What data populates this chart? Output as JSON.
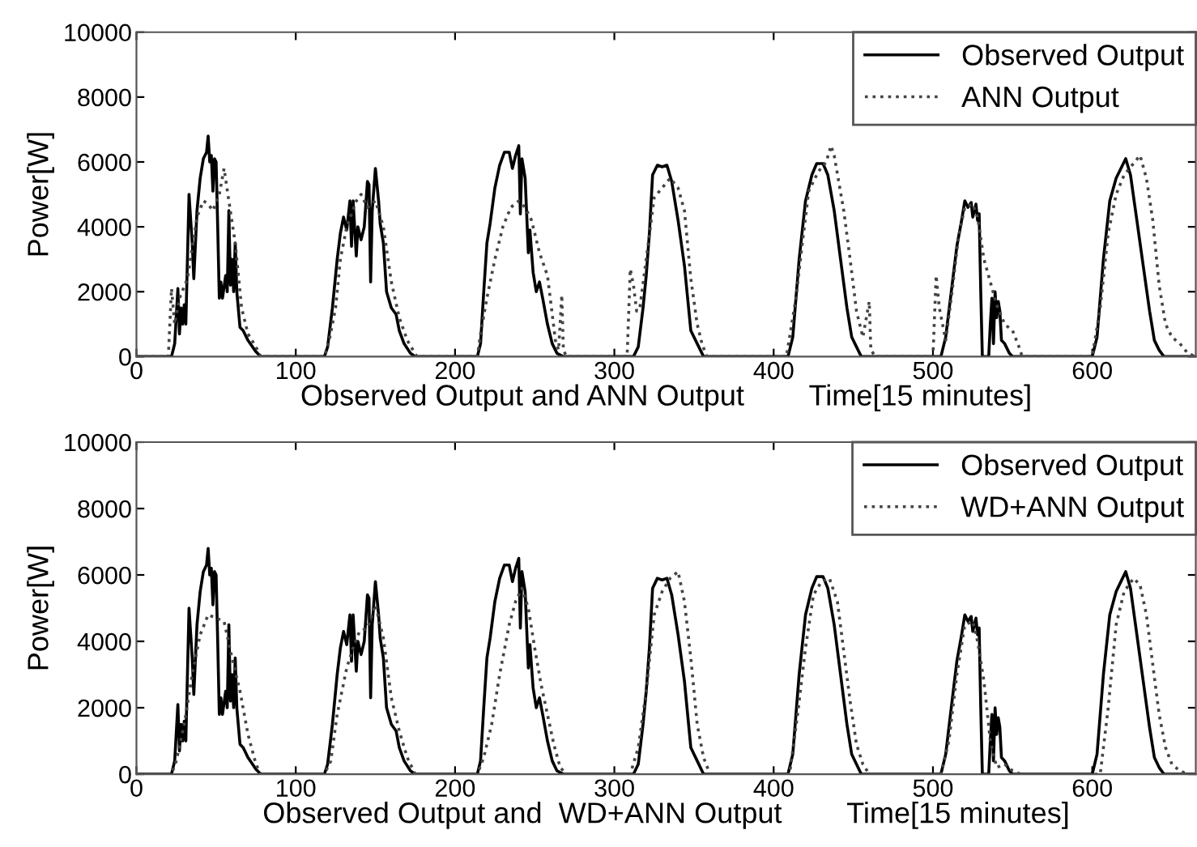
{
  "chart_data": [
    {
      "type": "line",
      "xlabel": "Observed Output and ANN Output        Time[15 minutes]",
      "ylabel": "Power[W]",
      "xlim": [
        0,
        665
      ],
      "xticks": [
        0,
        100,
        200,
        300,
        400,
        500,
        600
      ],
      "ylim": [
        0,
        10000
      ],
      "yticks": [
        0,
        2000,
        4000,
        6000,
        8000,
        10000
      ],
      "legend": "top right",
      "grid": false,
      "series": [
        {
          "name": "Observed Output",
          "color": "#000000",
          "line_style": "solid",
          "x": [
            0,
            22,
            24,
            26,
            27,
            28,
            29,
            30,
            31,
            33,
            35,
            36,
            38,
            40,
            42,
            44,
            45,
            46,
            47,
            48,
            49,
            50,
            51,
            52,
            53,
            54,
            56,
            57,
            58,
            59,
            60,
            61,
            62,
            63,
            65,
            67,
            70,
            75,
            78,
            118,
            120,
            123,
            126,
            128,
            130,
            132,
            134,
            135,
            136,
            138,
            139,
            141,
            143,
            145,
            146,
            147,
            148,
            150,
            152,
            153,
            155,
            157,
            160,
            163,
            165,
            168,
            172,
            175,
            214,
            216,
            218,
            220,
            222,
            225,
            228,
            231,
            234,
            236,
            238,
            240,
            241,
            242,
            244,
            246,
            247,
            249,
            251,
            253,
            255,
            258,
            261,
            264,
            268,
            312,
            315,
            318,
            320,
            322,
            324,
            327,
            330,
            333,
            336,
            340,
            344,
            348,
            352,
            356,
            409,
            412,
            416,
            420,
            424,
            427,
            431,
            434,
            438,
            442,
            446,
            449,
            452,
            455,
            505,
            508,
            512,
            515,
            518,
            520,
            522,
            524,
            525,
            527,
            528,
            529,
            530,
            531,
            535,
            536,
            537,
            538,
            539,
            540,
            541,
            542,
            543,
            545,
            548,
            550,
            600,
            603,
            607,
            611,
            615,
            619,
            621,
            624,
            628,
            632,
            636,
            639,
            642,
            645,
            665
          ],
          "values": [
            0,
            0,
            400,
            2100,
            700,
            1500,
            1000,
            1600,
            1000,
            5000,
            3500,
            2400,
            4500,
            5500,
            6100,
            6300,
            6800,
            6000,
            6200,
            5100,
            6100,
            6000,
            4000,
            1800,
            2300,
            1800,
            2500,
            2000,
            4500,
            2200,
            3000,
            2000,
            3500,
            2000,
            900,
            800,
            500,
            150,
            0,
            0,
            300,
            1500,
            3000,
            3800,
            4300,
            3900,
            4800,
            3400,
            4800,
            3100,
            4000,
            3600,
            4000,
            5400,
            5300,
            2300,
            4500,
            5800,
            4800,
            4100,
            3500,
            2000,
            1500,
            1300,
            800,
            400,
            100,
            0,
            0,
            400,
            2000,
            3500,
            4100,
            5200,
            5900,
            6300,
            6300,
            5800,
            6200,
            6500,
            4400,
            6100,
            5500,
            3200,
            3900,
            2600,
            2000,
            2300,
            1800,
            1000,
            400,
            100,
            0,
            0,
            300,
            1500,
            2500,
            3800,
            5600,
            5900,
            5850,
            5900,
            5400,
            4200,
            2800,
            800,
            400,
            0,
            0,
            600,
            3000,
            4800,
            5600,
            5950,
            5950,
            5600,
            4500,
            3000,
            1500,
            600,
            300,
            0,
            0,
            600,
            2200,
            3400,
            4200,
            4800,
            4600,
            4750,
            4300,
            4700,
            4200,
            4400,
            2000,
            0,
            0,
            1000,
            1800,
            400,
            2000,
            1200,
            1700,
            1400,
            500,
            400,
            100,
            0,
            0,
            600,
            3000,
            4800,
            5500,
            5900,
            6100,
            5600,
            4200,
            2800,
            1400,
            500,
            200,
            0,
            0
          ]
        },
        {
          "name": "ANN Output",
          "color": "#444444",
          "line_style": "dotted",
          "x": [
            0,
            20,
            22,
            24,
            27,
            32,
            38,
            42,
            45,
            48,
            52,
            55,
            58,
            62,
            66,
            70,
            75,
            78,
            118,
            121,
            125,
            128,
            132,
            138,
            141,
            145,
            150,
            155,
            160,
            165,
            170,
            176,
            214,
            216,
            220,
            225,
            230,
            235,
            240,
            244,
            248,
            253,
            258,
            261,
            263,
            265,
            267,
            268,
            270,
            308,
            310,
            312,
            314,
            316,
            320,
            325,
            330,
            335,
            340,
            344,
            348,
            352,
            355,
            358,
            408,
            414,
            418,
            422,
            428,
            433,
            436,
            438,
            444,
            448,
            452,
            456,
            460,
            461,
            464,
            500,
            502,
            504,
            508,
            512,
            516,
            520,
            525,
            528,
            532,
            536,
            540,
            545,
            550,
            554,
            556,
            600,
            605,
            610,
            615,
            620,
            625,
            630,
            634,
            638,
            642,
            646,
            650,
            655,
            660,
            665
          ],
          "values": [
            0,
            0,
            2100,
            1000,
            1800,
            2400,
            4300,
            4800,
            4700,
            4500,
            5000,
            5800,
            4800,
            3500,
            1500,
            700,
            300,
            0,
            0,
            500,
            1500,
            3000,
            4000,
            4800,
            5000,
            4600,
            4800,
            4000,
            2300,
            1200,
            500,
            0,
            0,
            700,
            1800,
            3000,
            4000,
            4600,
            4800,
            4600,
            4200,
            3200,
            2500,
            1300,
            500,
            200,
            1900,
            200,
            0,
            0,
            2700,
            2200,
            1400,
            1500,
            3000,
            4900,
            5200,
            5500,
            5200,
            4500,
            2400,
            1000,
            400,
            0,
            0,
            1800,
            3500,
            5100,
            5700,
            6000,
            6500,
            6200,
            4500,
            3000,
            1400,
            600,
            1700,
            200,
            0,
            0,
            2500,
            1500,
            500,
            2000,
            3700,
            4600,
            4700,
            4300,
            3000,
            2300,
            1600,
            1000,
            800,
            300,
            0,
            0,
            1500,
            3800,
            5000,
            5600,
            5900,
            6200,
            5500,
            4200,
            2200,
            1000,
            600,
            400,
            100,
            0
          ]
        }
      ]
    },
    {
      "type": "line",
      "xlabel": "Observed Output and  WD+ANN Output        Time[15 minutes]",
      "ylabel": "Power[W]",
      "xlim": [
        0,
        665
      ],
      "xticks": [
        0,
        100,
        200,
        300,
        400,
        500,
        600
      ],
      "ylim": [
        0,
        10000
      ],
      "yticks": [
        0,
        2000,
        4000,
        6000,
        8000,
        10000
      ],
      "legend": "top right",
      "grid": false,
      "series": [
        {
          "name": "Observed Output",
          "color": "#000000",
          "line_style": "solid",
          "x": [
            0,
            22,
            24,
            26,
            27,
            28,
            29,
            30,
            31,
            33,
            35,
            36,
            38,
            40,
            42,
            44,
            45,
            46,
            47,
            48,
            49,
            50,
            51,
            52,
            53,
            54,
            56,
            57,
            58,
            59,
            60,
            61,
            62,
            63,
            65,
            67,
            70,
            75,
            78,
            118,
            120,
            123,
            126,
            128,
            130,
            132,
            134,
            135,
            136,
            138,
            139,
            141,
            143,
            145,
            146,
            147,
            148,
            150,
            152,
            153,
            155,
            157,
            160,
            163,
            165,
            168,
            172,
            175,
            214,
            216,
            218,
            220,
            222,
            225,
            228,
            231,
            234,
            236,
            238,
            240,
            241,
            242,
            244,
            246,
            247,
            249,
            251,
            253,
            255,
            258,
            261,
            264,
            268,
            312,
            315,
            318,
            320,
            322,
            324,
            327,
            330,
            333,
            336,
            340,
            344,
            348,
            352,
            356,
            409,
            412,
            416,
            420,
            424,
            427,
            431,
            434,
            438,
            442,
            446,
            449,
            452,
            455,
            505,
            508,
            512,
            515,
            518,
            520,
            522,
            524,
            525,
            527,
            528,
            529,
            530,
            531,
            535,
            536,
            537,
            538,
            539,
            540,
            541,
            542,
            543,
            545,
            548,
            550,
            600,
            603,
            607,
            611,
            615,
            619,
            621,
            624,
            628,
            632,
            636,
            639,
            642,
            645,
            665
          ],
          "values": [
            0,
            0,
            400,
            2100,
            700,
            1500,
            1000,
            1600,
            1000,
            5000,
            3500,
            2400,
            4500,
            5500,
            6100,
            6300,
            6800,
            6000,
            6200,
            5100,
            6100,
            6000,
            4000,
            1800,
            2300,
            1800,
            2500,
            2000,
            4500,
            2200,
            3000,
            2000,
            3500,
            2000,
            900,
            800,
            500,
            150,
            0,
            0,
            300,
            1500,
            3000,
            3800,
            4300,
            3900,
            4800,
            3400,
            4800,
            3100,
            4000,
            3600,
            4000,
            5400,
            5300,
            2300,
            4500,
            5800,
            4800,
            4100,
            3500,
            2000,
            1500,
            1300,
            800,
            400,
            100,
            0,
            0,
            400,
            2000,
            3500,
            4100,
            5200,
            5900,
            6300,
            6300,
            5800,
            6200,
            6500,
            4400,
            6100,
            5500,
            3200,
            3900,
            2600,
            2000,
            2300,
            1800,
            1000,
            400,
            100,
            0,
            0,
            300,
            1500,
            2500,
            3800,
            5600,
            5900,
            5850,
            5900,
            5400,
            4200,
            2800,
            800,
            400,
            0,
            0,
            600,
            3000,
            4800,
            5600,
            5950,
            5950,
            5600,
            4500,
            3000,
            1500,
            600,
            300,
            0,
            0,
            600,
            2200,
            3400,
            4200,
            4800,
            4600,
            4750,
            4300,
            4700,
            4200,
            4400,
            2000,
            0,
            0,
            1000,
            1800,
            400,
            2000,
            1200,
            1700,
            1400,
            500,
            400,
            100,
            0,
            0,
            600,
            3000,
            4800,
            5500,
            5900,
            6100,
            5600,
            4200,
            2800,
            1400,
            500,
            200,
            0,
            0
          ]
        },
        {
          "name": "WD+ANN Output",
          "color": "#444444",
          "line_style": "dotted",
          "x": [
            0,
            22,
            25,
            30,
            35,
            40,
            45,
            50,
            55,
            60,
            65,
            70,
            75,
            78,
            118,
            122,
            126,
            132,
            136,
            140,
            145,
            150,
            155,
            160,
            165,
            170,
            175,
            214,
            218,
            223,
            228,
            234,
            238,
            242,
            246,
            250,
            254,
            258,
            262,
            266,
            270,
            310,
            315,
            320,
            325,
            330,
            335,
            340,
            344,
            348,
            352,
            356,
            360,
            410,
            415,
            420,
            425,
            430,
            435,
            440,
            444,
            448,
            452,
            456,
            460,
            505,
            510,
            515,
            520,
            525,
            528,
            532,
            536,
            540,
            545,
            550,
            555,
            605,
            610,
            615,
            620,
            626,
            630,
            634,
            638,
            642,
            646,
            650,
            655,
            660,
            665
          ],
          "values": [
            0,
            0,
            400,
            1500,
            3000,
            4200,
            4800,
            4700,
            4600,
            3500,
            2500,
            1200,
            300,
            0,
            0,
            400,
            1800,
            3200,
            3800,
            4300,
            4400,
            5100,
            4100,
            2300,
            1300,
            500,
            0,
            0,
            500,
            1500,
            3000,
            4500,
            5200,
            5600,
            5000,
            3800,
            2700,
            1800,
            900,
            200,
            0,
            0,
            800,
            2500,
            4800,
            5500,
            5900,
            6100,
            5200,
            3500,
            1500,
            500,
            0,
            0,
            1800,
            3800,
            5400,
            5800,
            5900,
            5200,
            3700,
            2200,
            900,
            300,
            0,
            0,
            1000,
            3000,
            4500,
            4600,
            4000,
            2800,
            1000,
            200,
            300,
            100,
            0,
            0,
            2000,
            4500,
            5500,
            5900,
            5700,
            4800,
            3300,
            1800,
            800,
            300,
            100,
            0,
            0
          ]
        }
      ]
    }
  ]
}
